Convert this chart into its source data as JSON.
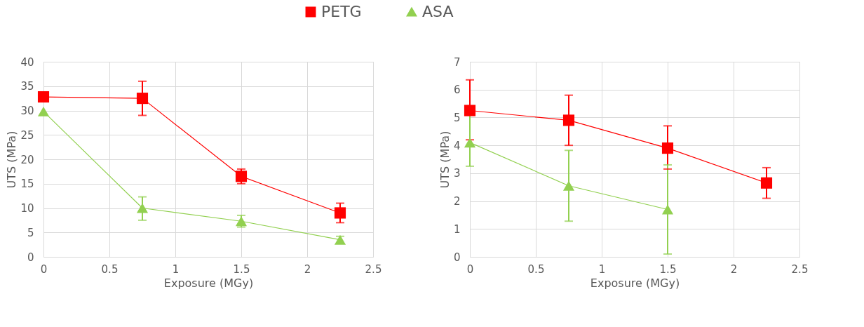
{
  "chart_data": [
    {
      "type": "line",
      "xlabel": "Exposure (MGy)",
      "ylabel": "UTS (MPa)",
      "xlim": [
        0,
        2.5
      ],
      "xticks": [
        0,
        0.5,
        1,
        1.5,
        2,
        2.5
      ],
      "ylim": [
        0,
        40
      ],
      "yticks": [
        0,
        5,
        10,
        15,
        20,
        25,
        30,
        35,
        40
      ],
      "grid": true,
      "legend": "top",
      "x": [
        0,
        0.75,
        1.5,
        2.25
      ],
      "series": [
        {
          "name": "PETG",
          "color": "#ff0000",
          "marker": "square",
          "values": [
            32.8,
            32.5,
            16.5,
            9
          ],
          "errors": [
            null,
            [
              29,
              36
            ],
            [
              15,
              18
            ],
            [
              7,
              11
            ]
          ]
        },
        {
          "name": "ASA",
          "color": "#92d050",
          "marker": "triangle",
          "values": [
            29.8,
            10,
            7.3,
            3.5
          ],
          "errors": [
            null,
            [
              7.5,
              12.3
            ],
            [
              6.1,
              8.5
            ],
            [
              2.8,
              4.2
            ]
          ]
        }
      ]
    },
    {
      "type": "line",
      "xlabel": "Exposure (MGy)",
      "ylabel": "UTS (MPa)",
      "xlim": [
        0,
        2.5
      ],
      "xticks": [
        0,
        0.5,
        1,
        1.5,
        2,
        2.5
      ],
      "ylim": [
        0,
        7
      ],
      "yticks": [
        0,
        1,
        2,
        3,
        4,
        5,
        6,
        7
      ],
      "grid": true,
      "legend": "top",
      "x": [
        0,
        0.75,
        1.5,
        2.25
      ],
      "series": [
        {
          "name": "PETG",
          "color": "#ff0000",
          "marker": "square",
          "values": [
            5.25,
            4.9,
            3.9,
            2.65
          ],
          "errors": [
            [
              4.2,
              6.35
            ],
            [
              4,
              5.8
            ],
            [
              3.15,
              4.7
            ],
            [
              2.1,
              3.2
            ]
          ]
        },
        {
          "name": "ASA",
          "color": "#92d050",
          "marker": "triangle",
          "values": [
            4.1,
            2.55,
            1.7,
            null
          ],
          "errors": [
            [
              3.25,
              5.1
            ],
            [
              1.28,
              3.82
            ],
            [
              0.1,
              3.3
            ],
            null
          ]
        }
      ]
    }
  ]
}
